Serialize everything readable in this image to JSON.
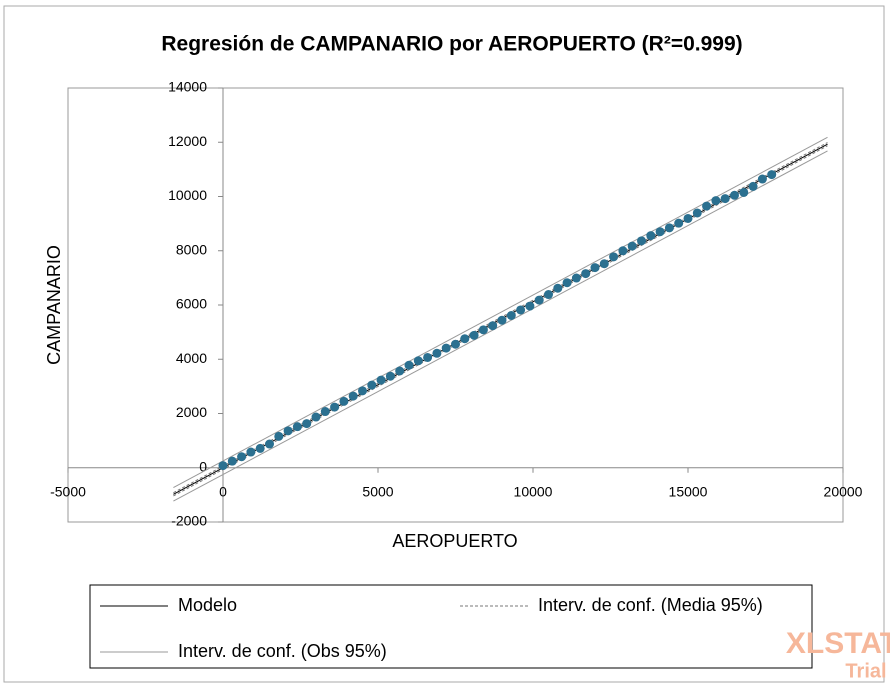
{
  "chart_data": {
    "type": "scatter",
    "title": "Regresión de CAMPANARIO por AEROPUERTO (R²=0.999)",
    "x_label": "AEROPUERTO",
    "y_label": "CAMPANARIO",
    "xlim": [
      -5000,
      20000
    ],
    "ylim": [
      -2000,
      14000
    ],
    "xticks": [
      -5000,
      0,
      5000,
      10000,
      15000,
      20000
    ],
    "yticks": [
      -2000,
      0,
      2000,
      4000,
      6000,
      8000,
      10000,
      12000,
      14000
    ],
    "points": {
      "color": "#2b7090",
      "x": [
        0,
        300,
        600,
        900,
        1200,
        1500,
        1800,
        2100,
        2400,
        2700,
        3000,
        3300,
        3600,
        3900,
        4200,
        4500,
        4800,
        5100,
        5400,
        5700,
        6000,
        6300,
        6600,
        6900,
        7200,
        7500,
        7800,
        8100,
        8400,
        8700,
        9000,
        9300,
        9600,
        9900,
        10200,
        10500,
        10800,
        11100,
        11400,
        11700,
        12000,
        12300,
        12600,
        12900,
        13200,
        13500,
        13800,
        14100,
        14400,
        14700,
        15000,
        15300,
        15600,
        15900,
        16200,
        16500,
        16800,
        17100,
        17400,
        17700
      ],
      "values": [
        80,
        243,
        406,
        579,
        712,
        875,
        1158,
        1361,
        1514,
        1627,
        1870,
        2073,
        2236,
        2449,
        2642,
        2835,
        3048,
        3231,
        3374,
        3567,
        3780,
        3943,
        4066,
        4219,
        4412,
        4555,
        4758,
        4881,
        5084,
        5237,
        5440,
        5613,
        5816,
        5959,
        6182,
        6385,
        6618,
        6821,
        6994,
        7157,
        7380,
        7523,
        7776,
        7999,
        8172,
        8365,
        8558,
        8701,
        8844,
        9017,
        9190,
        9393,
        9646,
        9849,
        9922,
        10045,
        10148,
        10371,
        10644,
        10807
      ]
    },
    "series": [
      {
        "name": "Modelo",
        "color": "#000000",
        "dash": false,
        "x": [
          -1600,
          19500
        ],
        "values": [
          -980,
          11930
        ]
      },
      {
        "name": "Interv. de conf. (Media 95%)",
        "color": "#777777",
        "dash": true,
        "x": [
          -1600,
          19500
        ],
        "values": [
          -920,
          11990
        ]
      },
      {
        "name": "Interv. de conf. (Obs 95%)",
        "color": "#999999",
        "dash": false,
        "x": [
          -1600,
          19500
        ],
        "values": [
          -730,
          12180
        ]
      }
    ],
    "lower_bounds": [
      {
        "color": "#777777",
        "dash": true,
        "x": [
          -1600,
          19500
        ],
        "values": [
          -1040,
          11870
        ]
      },
      {
        "color": "#999999",
        "dash": false,
        "x": [
          -1600,
          19500
        ],
        "values": [
          -1230,
          11680
        ]
      }
    ],
    "annotations": [
      "XLSTAT",
      "Trial"
    ]
  }
}
